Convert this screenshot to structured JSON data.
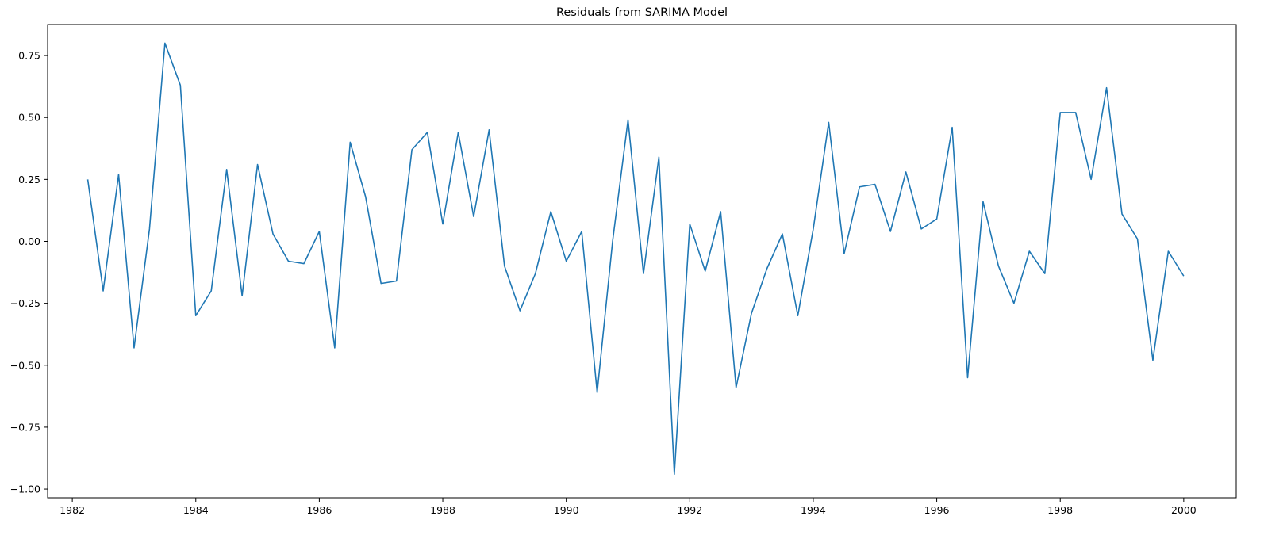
{
  "chart_data": {
    "type": "line",
    "title": "Residuals from SARIMA Model",
    "xlabel": "",
    "ylabel": "",
    "xlim": [
      1981.6,
      2000.85
    ],
    "ylim": [
      -1.035,
      0.875
    ],
    "grid": false,
    "legend": "none",
    "x_ticks": [
      1982,
      1984,
      1986,
      1988,
      1990,
      1992,
      1994,
      1996,
      1998,
      2000
    ],
    "x_tick_labels": [
      "1982",
      "1984",
      "1986",
      "1988",
      "1990",
      "1992",
      "1994",
      "1996",
      "1998",
      "2000"
    ],
    "y_ticks": [
      -1.0,
      -0.75,
      -0.5,
      -0.25,
      0.0,
      0.25,
      0.5,
      0.75
    ],
    "y_tick_labels": [
      "−1.00",
      "−0.75",
      "−0.50",
      "−0.25",
      "0.00",
      "0.25",
      "0.50",
      "0.75"
    ],
    "series": [
      {
        "color": "#1f77b4",
        "x": [
          1982.25,
          1982.5,
          1982.75,
          1983.0,
          1983.25,
          1983.5,
          1983.75,
          1984.0,
          1984.25,
          1984.5,
          1984.75,
          1985.0,
          1985.25,
          1985.5,
          1985.75,
          1986.0,
          1986.25,
          1986.5,
          1986.75,
          1987.0,
          1987.25,
          1987.5,
          1987.75,
          1988.0,
          1988.25,
          1988.5,
          1988.75,
          1989.0,
          1989.25,
          1989.5,
          1989.75,
          1990.0,
          1990.25,
          1990.5,
          1990.75,
          1991.0,
          1991.25,
          1991.5,
          1991.75,
          1992.0,
          1992.25,
          1992.5,
          1992.75,
          1993.0,
          1993.25,
          1993.5,
          1993.75,
          1994.0,
          1994.25,
          1994.5,
          1994.75,
          1995.0,
          1995.25,
          1995.5,
          1995.75,
          1996.0,
          1996.25,
          1996.5,
          1996.75,
          1997.0,
          1997.25,
          1997.5,
          1997.75,
          1998.0,
          1998.25,
          1998.5,
          1998.75,
          1999.0,
          1999.25,
          1999.5,
          1999.75,
          2000.0
        ],
        "values": [
          0.25,
          -0.2,
          0.27,
          -0.43,
          0.05,
          0.8,
          0.63,
          -0.3,
          -0.2,
          0.29,
          -0.22,
          0.31,
          0.03,
          -0.08,
          -0.09,
          0.04,
          -0.43,
          0.4,
          0.18,
          -0.17,
          -0.16,
          0.37,
          0.44,
          0.07,
          0.44,
          0.1,
          0.45,
          -0.1,
          -0.28,
          -0.13,
          0.12,
          -0.08,
          0.04,
          -0.61,
          0.0,
          0.49,
          -0.13,
          0.34,
          -0.94,
          0.07,
          -0.12,
          0.12,
          -0.59,
          -0.29,
          -0.11,
          0.03,
          -0.3,
          0.05,
          0.48,
          -0.05,
          0.22,
          0.23,
          0.04,
          0.28,
          0.05,
          0.09,
          0.46,
          -0.55,
          0.16,
          -0.1,
          -0.25,
          -0.04,
          -0.13,
          0.52,
          0.52,
          0.25,
          0.62,
          0.11,
          0.01,
          -0.48,
          -0.04,
          -0.14
        ]
      }
    ]
  }
}
